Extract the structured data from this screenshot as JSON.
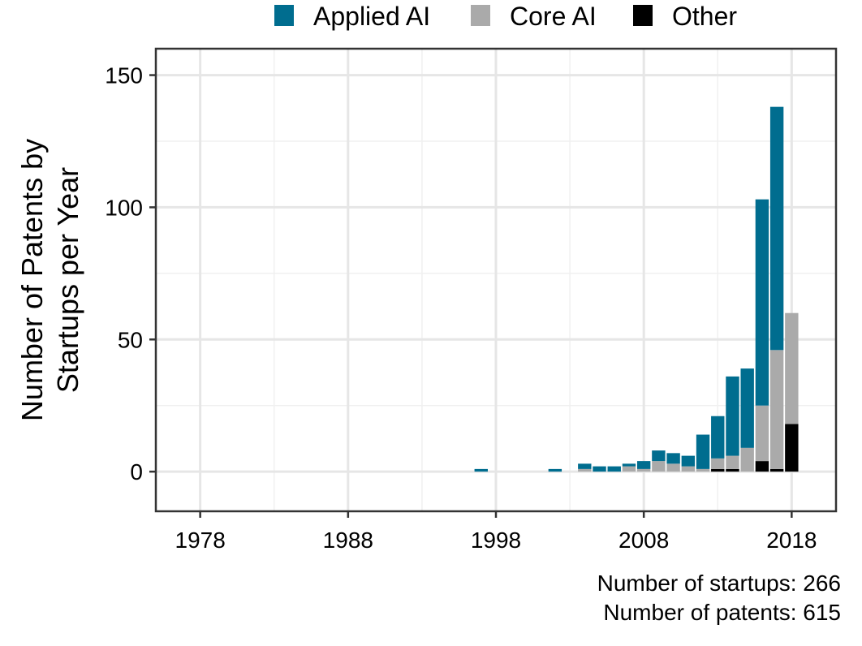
{
  "chart_data": {
    "type": "bar",
    "stacked": true,
    "title": "",
    "xlabel": "",
    "ylabel_lines": [
      "Number of Patents by",
      "Startups per Year"
    ],
    "xlim": [
      1975,
      2021
    ],
    "ylim": [
      -15,
      160
    ],
    "x_ticks": [
      1978,
      1988,
      1998,
      2008,
      2018
    ],
    "y_ticks": [
      0,
      50,
      100,
      150
    ],
    "grid": true,
    "legend_position": "top",
    "x": [
      1997,
      2002,
      2004,
      2005,
      2006,
      2007,
      2008,
      2009,
      2010,
      2011,
      2012,
      2013,
      2014,
      2015,
      2016,
      2017,
      2018
    ],
    "series": [
      {
        "name": "Other",
        "color": "#000000",
        "values": [
          0,
          0,
          0,
          0,
          0,
          0,
          0,
          0,
          0,
          0,
          0,
          1,
          1,
          0,
          4,
          1,
          18
        ]
      },
      {
        "name": "Core AI",
        "color": "#aaaaaa",
        "values": [
          0,
          0,
          1,
          0,
          0,
          2,
          1,
          4,
          3,
          2,
          1,
          4,
          5,
          9,
          21,
          45,
          42
        ]
      },
      {
        "name": "Applied AI",
        "color": "#006d8f",
        "values": [
          1,
          1,
          2,
          2,
          2,
          1,
          3,
          4,
          4,
          4,
          13,
          16,
          30,
          30,
          78,
          92,
          0
        ]
      }
    ],
    "legend_order": [
      "Applied AI",
      "Core AI",
      "Other"
    ],
    "caption_lines": [
      "Number of startups: 266",
      "Number of patents: 615"
    ]
  }
}
